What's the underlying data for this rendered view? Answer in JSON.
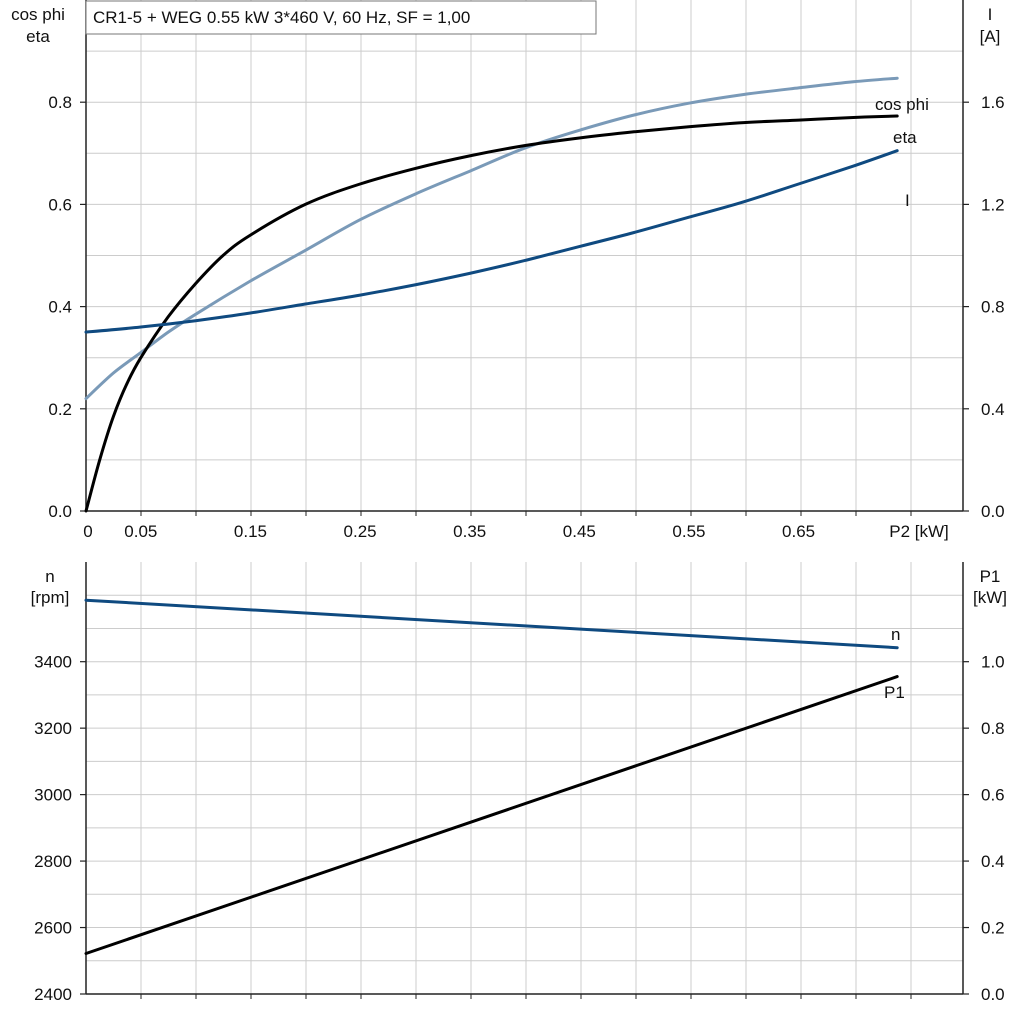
{
  "title": "CR1-5 + WEG   0.55 kW   3*460 V, 60 Hz, SF = 1,00",
  "colors": {
    "cos_phi": "#7a9ab8",
    "eta": "#000000",
    "current": "#0f4a80",
    "speed": "#0f4a80",
    "p1": "#000000",
    "grid": "#cccccc",
    "frame": "#222222"
  },
  "chart_data": [
    {
      "type": "line",
      "xlabel": "P2 [kW]",
      "xlim": [
        0,
        0.8
      ],
      "x_ticks": [
        0,
        0.05,
        0.15,
        0.25,
        0.35,
        0.45,
        0.55,
        0.65
      ],
      "x_tick_labels": [
        "0",
        "0.05",
        "0.15",
        "0.25",
        "0.35",
        "0.45",
        "0.55",
        "0.65"
      ],
      "ylabel_left": [
        "cos phi",
        "eta"
      ],
      "ylim_left": [
        0,
        1.0
      ],
      "y_ticks_left": [
        "0.0",
        "0.2",
        "0.4",
        "0.6",
        "0.8"
      ],
      "ylabel_right": [
        "I",
        "[A]"
      ],
      "ylim_right": [
        0,
        2.0
      ],
      "y_ticks_right": [
        "0.0",
        "0.4",
        "0.8",
        "1.2",
        "1.6"
      ],
      "grid": true,
      "series": [
        {
          "name": "cos phi",
          "axis": "left",
          "color_key": "cos_phi",
          "x": [
            0,
            0.025,
            0.05,
            0.075,
            0.1,
            0.15,
            0.2,
            0.25,
            0.3,
            0.35,
            0.4,
            0.45,
            0.5,
            0.55,
            0.6,
            0.65,
            0.7,
            0.74
          ],
          "y": [
            0.22,
            0.27,
            0.31,
            0.35,
            0.385,
            0.45,
            0.51,
            0.57,
            0.62,
            0.665,
            0.71,
            0.745,
            0.775,
            0.798,
            0.815,
            0.828,
            0.84,
            0.847
          ]
        },
        {
          "name": "eta",
          "axis": "left",
          "color_key": "eta",
          "x": [
            0,
            0.0125,
            0.025,
            0.0375,
            0.05,
            0.075,
            0.1,
            0.125,
            0.15,
            0.2,
            0.25,
            0.3,
            0.35,
            0.4,
            0.45,
            0.5,
            0.55,
            0.6,
            0.65,
            0.7,
            0.74
          ],
          "y": [
            0,
            0.1,
            0.185,
            0.25,
            0.3,
            0.38,
            0.445,
            0.5,
            0.54,
            0.6,
            0.64,
            0.67,
            0.695,
            0.715,
            0.73,
            0.742,
            0.752,
            0.76,
            0.765,
            0.77,
            0.773
          ]
        },
        {
          "name": "I",
          "axis": "right",
          "color_key": "current",
          "x": [
            0,
            0.05,
            0.1,
            0.15,
            0.2,
            0.25,
            0.3,
            0.35,
            0.4,
            0.45,
            0.5,
            0.55,
            0.6,
            0.65,
            0.7,
            0.74
          ],
          "y": [
            0.7,
            0.72,
            0.745,
            0.775,
            0.81,
            0.845,
            0.885,
            0.93,
            0.98,
            1.035,
            1.09,
            1.15,
            1.21,
            1.28,
            1.35,
            1.41
          ]
        }
      ]
    },
    {
      "type": "line",
      "xlim": [
        0,
        0.8
      ],
      "ylabel_left": [
        "n",
        "[rpm]"
      ],
      "ylim_left": [
        2400,
        3700
      ],
      "y_ticks_left": [
        "2400",
        "2600",
        "2800",
        "3000",
        "3200",
        "3400"
      ],
      "ylabel_right": [
        "P1",
        "[kW]"
      ],
      "ylim_right": [
        0,
        1.3
      ],
      "y_ticks_right": [
        "0.0",
        "0.2",
        "0.4",
        "0.6",
        "0.8",
        "1.0"
      ],
      "grid": true,
      "series": [
        {
          "name": "n",
          "axis": "left",
          "color_key": "speed",
          "x": [
            0,
            0.74
          ],
          "y": [
            3585,
            3442
          ]
        },
        {
          "name": "P1",
          "axis": "right",
          "color_key": "p1",
          "x": [
            0,
            0.74
          ],
          "y": [
            0.122,
            0.955
          ]
        }
      ]
    }
  ]
}
